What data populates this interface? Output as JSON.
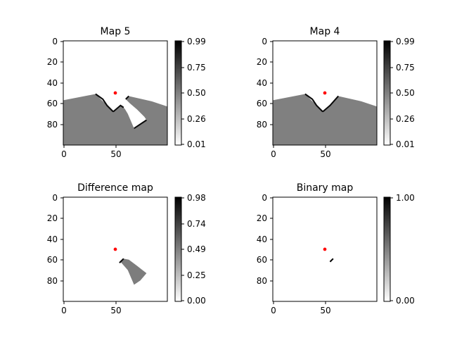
{
  "figure": {
    "panels": [
      {
        "title": "Map 5",
        "x_ticks": [
          0,
          50
        ],
        "y_ticks": [
          0,
          20,
          40,
          60,
          80
        ],
        "colorbar_ticks": [
          "0.01",
          "0.26",
          "0.50",
          "0.75",
          "0.99"
        ],
        "marker": {
          "x": 50,
          "y": 50,
          "color": "#ff0000"
        }
      },
      {
        "title": "Map 4",
        "x_ticks": [
          0,
          50
        ],
        "y_ticks": [
          0,
          20,
          40,
          60,
          80
        ],
        "colorbar_ticks": [
          "0.01",
          "0.26",
          "0.50",
          "0.75",
          "0.99"
        ],
        "marker": {
          "x": 50,
          "y": 50,
          "color": "#ff0000"
        }
      },
      {
        "title": "Difference map",
        "x_ticks": [
          0,
          50
        ],
        "y_ticks": [
          0,
          20,
          40,
          60,
          80
        ],
        "colorbar_ticks": [
          "0.00",
          "0.25",
          "0.49",
          "0.74",
          "0.98"
        ],
        "marker": {
          "x": 50,
          "y": 50,
          "color": "#ff0000"
        }
      },
      {
        "title": "Binary map",
        "x_ticks": [
          0,
          50
        ],
        "y_ticks": [
          0,
          20,
          40,
          60,
          80
        ],
        "colorbar_ticks": [
          "0.00",
          "1.00"
        ],
        "marker": {
          "x": 50,
          "y": 50,
          "color": "#ff0000"
        }
      }
    ]
  },
  "chart_data": [
    {
      "type": "heatmap",
      "title": "Map 5",
      "grid_size": [
        100,
        100
      ],
      "xlim": [
        0,
        100
      ],
      "ylim": [
        0,
        100
      ],
      "colormap": "gray_r",
      "value_range": [
        0.01,
        0.99
      ],
      "regions": [
        {
          "name": "occupied-ground",
          "value": 0.5,
          "polygon": [
            [
              0,
              57
            ],
            [
              31,
              51
            ],
            [
              42,
              62
            ],
            [
              48,
              68
            ],
            [
              55,
              62
            ],
            [
              59,
              65
            ],
            [
              62,
              70
            ],
            [
              68,
              84
            ],
            [
              80,
              76
            ],
            [
              78,
              73
            ],
            [
              71,
              66
            ],
            [
              64,
              60
            ],
            [
              60,
              56
            ],
            [
              63,
              53
            ],
            [
              85,
              58
            ],
            [
              100,
              63
            ],
            [
              100,
              100
            ],
            [
              0,
              100
            ]
          ]
        }
      ],
      "edge_lines": [
        {
          "value": 0.95,
          "points": [
            [
              31,
              51
            ],
            [
              38,
              56
            ],
            [
              42,
              62
            ],
            [
              48,
              68
            ]
          ]
        },
        {
          "value": 0.95,
          "points": [
            [
              48,
              68
            ],
            [
              55,
              62
            ],
            [
              58,
              64
            ]
          ]
        },
        {
          "value": 0.95,
          "points": [
            [
              60,
              56
            ],
            [
              63,
              53
            ]
          ]
        },
        {
          "value": 0.95,
          "points": [
            [
              68,
              84
            ],
            [
              80,
              76
            ]
          ]
        }
      ],
      "marker_point": [
        50,
        50
      ]
    },
    {
      "type": "heatmap",
      "title": "Map 4",
      "grid_size": [
        100,
        100
      ],
      "xlim": [
        0,
        100
      ],
      "ylim": [
        0,
        100
      ],
      "colormap": "gray_r",
      "value_range": [
        0.01,
        0.99
      ],
      "regions": [
        {
          "name": "occupied-ground",
          "value": 0.5,
          "polygon": [
            [
              0,
              57
            ],
            [
              31,
              51
            ],
            [
              42,
              62
            ],
            [
              48,
              68
            ],
            [
              55,
              62
            ],
            [
              63,
              53
            ],
            [
              85,
              58
            ],
            [
              100,
              63
            ],
            [
              100,
              100
            ],
            [
              0,
              100
            ]
          ]
        }
      ],
      "edge_lines": [
        {
          "value": 0.95,
          "points": [
            [
              31,
              51
            ],
            [
              38,
              56
            ],
            [
              42,
              62
            ],
            [
              48,
              68
            ]
          ]
        },
        {
          "value": 0.95,
          "points": [
            [
              48,
              68
            ],
            [
              55,
              62
            ],
            [
              63,
              53
            ]
          ]
        }
      ],
      "marker_point": [
        50,
        50
      ]
    },
    {
      "type": "heatmap",
      "title": "Difference map",
      "grid_size": [
        100,
        100
      ],
      "xlim": [
        0,
        100
      ],
      "ylim": [
        0,
        100
      ],
      "colormap": "gray_r",
      "value_range": [
        0.0,
        0.98
      ],
      "regions": [
        {
          "name": "difference-wedge",
          "value": 0.5,
          "polygon": [
            [
              55,
              62
            ],
            [
              58,
              59
            ],
            [
              63,
              60
            ],
            [
              71,
              66
            ],
            [
              80,
              73
            ],
            [
              74,
              80
            ],
            [
              68,
              84
            ],
            [
              62,
              70
            ]
          ]
        }
      ],
      "edge_lines": [
        {
          "value": 0.95,
          "points": [
            [
              54,
              63
            ],
            [
              58,
              59
            ]
          ]
        }
      ],
      "marker_point": [
        50,
        50
      ]
    },
    {
      "type": "heatmap",
      "title": "Binary map",
      "grid_size": [
        100,
        100
      ],
      "xlim": [
        0,
        100
      ],
      "ylim": [
        0,
        100
      ],
      "colormap": "gray_r",
      "value_range": [
        0.0,
        1.0
      ],
      "regions": [],
      "edge_lines": [
        {
          "value": 1.0,
          "points": [
            [
              55,
              62
            ],
            [
              58,
              59
            ]
          ]
        }
      ],
      "marker_point": [
        50,
        50
      ]
    }
  ]
}
